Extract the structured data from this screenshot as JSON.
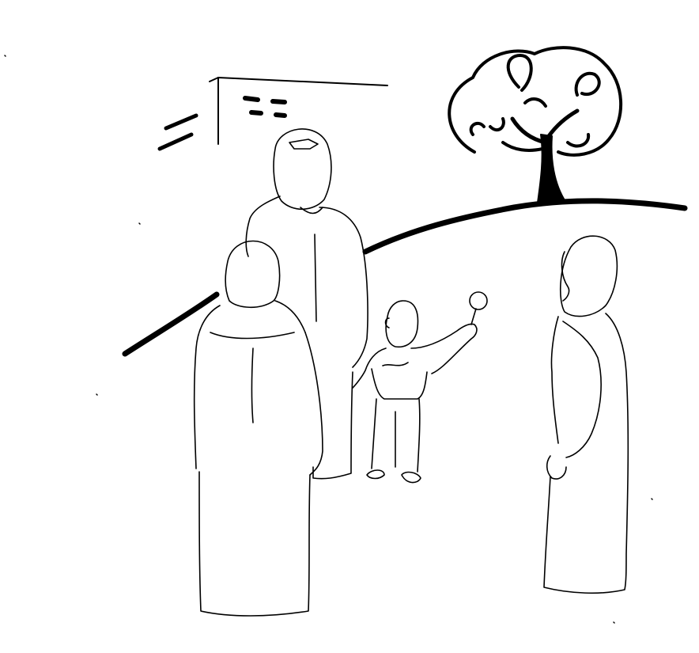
{
  "illustration": {
    "style": "black line drawing on white background",
    "colors": {
      "ink": "#000000",
      "paper": "#ffffff"
    },
    "elements": [
      "hill-line",
      "tree",
      "building-corner",
      "woman-back-view-left",
      "woman-center-standing",
      "child-holding-lollipop",
      "woman-profile-right"
    ]
  }
}
